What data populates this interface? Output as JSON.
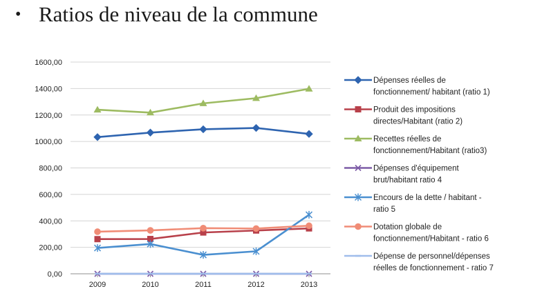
{
  "slide": {
    "title": "Ratios de niveau de la commune"
  },
  "chart_data": {
    "type": "line",
    "categories": [
      "2009",
      "2010",
      "2011",
      "2012",
      "2013"
    ],
    "ylim": [
      0,
      1600
    ],
    "yticks": [
      0,
      200,
      400,
      600,
      800,
      1000,
      1200,
      1400,
      1600
    ],
    "ytick_labels": [
      "0,00",
      "200,00",
      "400,00",
      "600,00",
      "800,00",
      "1000,00",
      "1200,00",
      "1400,00",
      "1600,00"
    ],
    "grid": "horizontal",
    "legend_position": "right",
    "series": [
      {
        "name": "Dépenses réelles de fonctionnement/ habitant (ratio 1)",
        "legend_lines": [
          "Dépenses réelles de",
          "fonctionnement/ habitant (ratio 1)"
        ],
        "values": [
          1033,
          1067,
          1092,
          1102,
          1057
        ],
        "color": "#2E64B0",
        "marker": "diamond"
      },
      {
        "name": "Produit des impositions directes/Habitant (ratio 2)",
        "legend_lines": [
          "Produit des impositions",
          "directes/Habitant (ratio 2)"
        ],
        "values": [
          262,
          263,
          312,
          327,
          343
        ],
        "color": "#B8404A",
        "marker": "square"
      },
      {
        "name": "Recettes réelles de fonctionnement/Habitant (ratio3)",
        "legend_lines": [
          "Recettes réelles de",
          "fonctionnement/Habitant (ratio3)"
        ],
        "values": [
          1240,
          1218,
          1288,
          1327,
          1398
        ],
        "color": "#9DBB61",
        "marker": "triangle"
      },
      {
        "name": "Dépenses d'équipement brut/habitant ratio 4",
        "legend_lines": [
          "Dépenses d'équipement",
          "brut/habitant ratio 4"
        ],
        "values": [
          0,
          0,
          0,
          0,
          0
        ],
        "color": "#7C5BA6",
        "marker": "x"
      },
      {
        "name": "Encours de la dette / habitant - ratio 5",
        "legend_lines": [
          "Encours de la dette / habitant -",
          "ratio 5"
        ],
        "values": [
          195,
          225,
          143,
          170,
          446
        ],
        "color": "#4A8FD0",
        "marker": "star"
      },
      {
        "name": "Dotation globale de fonctionnement/Habitant - ratio 6",
        "legend_lines": [
          "Dotation globale de",
          "fonctionnement/Habitant - ratio 6"
        ],
        "values": [
          318,
          328,
          345,
          342,
          363
        ],
        "color": "#F08C76",
        "marker": "circle"
      },
      {
        "name": "Dépense de personnel/dépenses réelles de fonctionnement - ratio 7",
        "legend_lines": [
          "Dépense de personnel/dépenses",
          "réelles de fonctionnement - ratio 7"
        ],
        "values": [
          0.5,
          0.5,
          0.5,
          0.5,
          0.5
        ],
        "color": "#9FBDEB",
        "marker": "dash"
      }
    ]
  }
}
